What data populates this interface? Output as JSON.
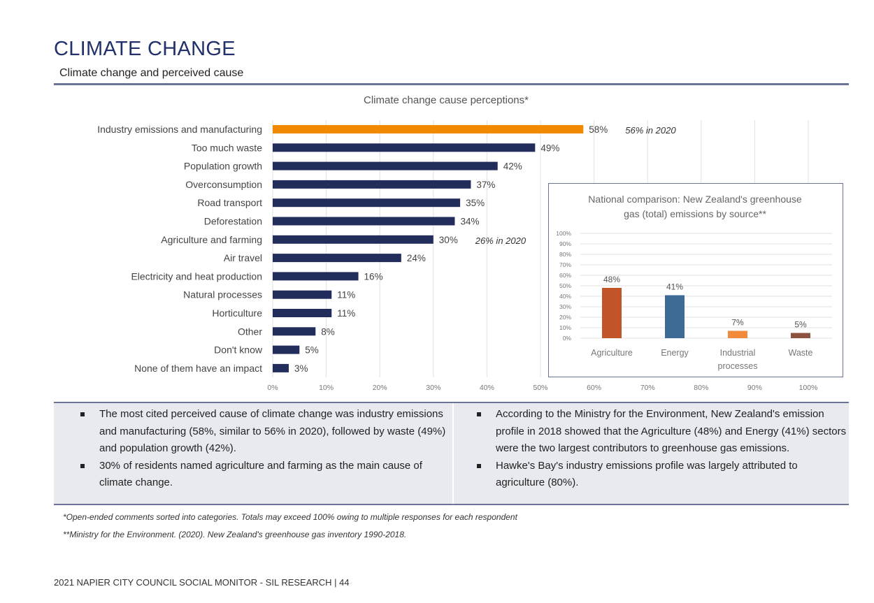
{
  "header": {
    "title": "CLIMATE CHANGE",
    "subtitle": "Climate change and perceived cause"
  },
  "chart_data": [
    {
      "type": "bar",
      "orientation": "horizontal",
      "title": "Climate change cause perceptions*",
      "categories": [
        "Industry emissions and manufacturing",
        "Too much waste",
        "Population growth",
        "Overconsumption",
        "Road transport",
        "Deforestation",
        "Agriculture and farming",
        "Air travel",
        "Electricity and heat production",
        "Natural processes",
        "Horticulture",
        "Other",
        "Don't know",
        "None of them have an impact"
      ],
      "values": [
        58,
        49,
        42,
        37,
        35,
        34,
        30,
        24,
        16,
        11,
        11,
        8,
        5,
        3
      ],
      "value_labels": [
        "58%",
        "49%",
        "42%",
        "37%",
        "35%",
        "34%",
        "30%",
        "24%",
        "16%",
        "11%",
        "11%",
        "8%",
        "5%",
        "3%"
      ],
      "annotations": [
        {
          "category": "Industry emissions and manufacturing",
          "text": "56% in 2020"
        },
        {
          "category": "Agriculture and farming",
          "text": "26% in 2020"
        }
      ],
      "highlight_category": "Industry emissions and manufacturing",
      "xlim": [
        0,
        100
      ],
      "x_ticks": [
        "0%",
        "10%",
        "20%",
        "30%",
        "40%",
        "50%",
        "60%",
        "70%",
        "80%",
        "90%",
        "100%"
      ],
      "grid": true,
      "colors": {
        "bar": "#222d5c",
        "highlight": "#f28a00"
      }
    },
    {
      "type": "bar",
      "title": "National comparison: New Zealand's greenhouse gas (total) emissions by source**",
      "categories": [
        "Agriculture",
        "Energy",
        "Industrial processes",
        "Waste"
      ],
      "values": [
        48,
        41,
        7,
        5
      ],
      "value_labels": [
        "48%",
        "41%",
        "7%",
        "5%"
      ],
      "ylim": [
        0,
        100
      ],
      "y_ticks": [
        "0%",
        "10%",
        "20%",
        "30%",
        "40%",
        "50%",
        "60%",
        "70%",
        "80%",
        "90%",
        "100%"
      ],
      "grid": true,
      "colors": [
        "#c2542a",
        "#3d6b96",
        "#f28a3c",
        "#8c5440"
      ]
    }
  ],
  "bullets": {
    "left": [
      "The most cited perceived cause of climate change was industry emissions and manufacturing (58%, similar to 56% in 2020), followed by waste (49%) and population growth (42%).",
      "30% of residents named agriculture and farming as the main cause of climate change."
    ],
    "right": [
      "According to the Ministry for the Environment, New Zealand's emission profile in 2018 showed that the Agriculture (48%) and Energy (41%) sectors were the two largest contributors to greenhouse gas emissions.",
      "Hawke's Bay's industry emissions profile was largely attributed to agriculture (80%)."
    ]
  },
  "footnotes": {
    "first": "*Open-ended comments sorted into categories. Totals may exceed 100% owing to multiple responses for each respondent",
    "second": "**Ministry for the Environment. (2020). New Zealand's greenhouse gas inventory 1990-2018."
  },
  "footer": {
    "text": "2021 NAPIER CITY COUNCIL SOCIAL MONITOR - SIL RESEARCH | 44"
  }
}
